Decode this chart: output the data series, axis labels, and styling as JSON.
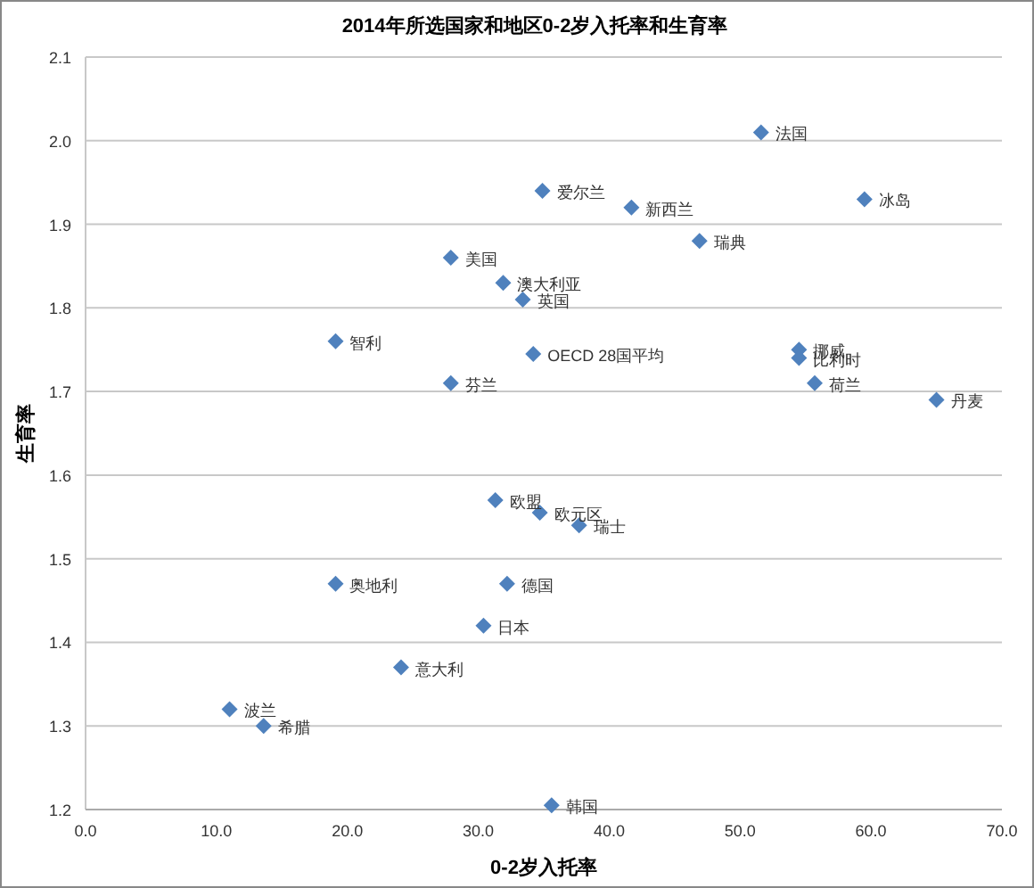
{
  "chart_data": {
    "type": "scatter",
    "title": "2014年所选国家和地区0-2岁入托率和生育率",
    "xlabel": "0-2岁入托率",
    "ylabel": "生育率",
    "series": [
      {
        "color": "#4f81bd",
        "x": [
          51.6,
          59.5,
          34.9,
          41.7,
          46.9,
          27.9,
          31.9,
          33.4,
          19.1,
          34.2,
          54.5,
          54.5,
          27.9,
          55.7,
          65.0,
          31.3,
          34.7,
          37.7,
          19.1,
          32.2,
          30.4,
          24.1,
          11.0,
          13.6,
          35.6
        ],
        "values": [
          2.01,
          1.93,
          1.94,
          1.92,
          1.88,
          1.86,
          1.83,
          1.81,
          1.76,
          1.745,
          1.75,
          1.74,
          1.71,
          1.71,
          1.69,
          1.57,
          1.555,
          1.54,
          1.47,
          1.47,
          1.42,
          1.37,
          1.32,
          1.3,
          1.205
        ]
      }
    ],
    "annotations": [
      {
        "text": "法国",
        "x": 51.6,
        "y": 2.01
      },
      {
        "text": "冰岛",
        "x": 59.5,
        "y": 1.93
      },
      {
        "text": "爱尔兰",
        "x": 34.9,
        "y": 1.94
      },
      {
        "text": "新西兰",
        "x": 41.7,
        "y": 1.92
      },
      {
        "text": "瑞典",
        "x": 46.9,
        "y": 1.88
      },
      {
        "text": "美国",
        "x": 27.9,
        "y": 1.86
      },
      {
        "text": "澳大利亚",
        "x": 31.9,
        "y": 1.83
      },
      {
        "text": "英国",
        "x": 33.4,
        "y": 1.81
      },
      {
        "text": "智利",
        "x": 19.1,
        "y": 1.76
      },
      {
        "text": "OECD 28国平均",
        "x": 34.2,
        "y": 1.745
      },
      {
        "text": "挪威",
        "x": 54.5,
        "y": 1.75
      },
      {
        "text": "比利时",
        "x": 54.5,
        "y": 1.74
      },
      {
        "text": "芬兰",
        "x": 27.9,
        "y": 1.71
      },
      {
        "text": "荷兰",
        "x": 55.7,
        "y": 1.71
      },
      {
        "text": "丹麦",
        "x": 65.0,
        "y": 1.69
      },
      {
        "text": "欧盟",
        "x": 31.3,
        "y": 1.57
      },
      {
        "text": "欧元区",
        "x": 34.7,
        "y": 1.555
      },
      {
        "text": "瑞士",
        "x": 37.7,
        "y": 1.54
      },
      {
        "text": "奥地利",
        "x": 19.1,
        "y": 1.47
      },
      {
        "text": "德国",
        "x": 32.2,
        "y": 1.47
      },
      {
        "text": "日本",
        "x": 30.4,
        "y": 1.42
      },
      {
        "text": "意大利",
        "x": 24.1,
        "y": 1.37
      },
      {
        "text": "波兰",
        "x": 11.0,
        "y": 1.32
      },
      {
        "text": "希腊",
        "x": 13.6,
        "y": 1.3
      },
      {
        "text": "韩国",
        "x": 35.6,
        "y": 1.205
      }
    ],
    "xlim": [
      0,
      70
    ],
    "xticks": [
      {
        "value": 0,
        "label": "0.0"
      },
      {
        "value": 10,
        "label": "10.0"
      },
      {
        "value": 20,
        "label": "20.0"
      },
      {
        "value": 30,
        "label": "30.0"
      },
      {
        "value": 40,
        "label": "40.0"
      },
      {
        "value": 50,
        "label": "50.0"
      },
      {
        "value": 60,
        "label": "60.0"
      },
      {
        "value": 70,
        "label": "70.0"
      }
    ],
    "ylim": [
      1.2,
      2.1
    ],
    "yticks": [
      1.2,
      1.3,
      1.4,
      1.5,
      1.6,
      1.7,
      1.8,
      1.9,
      {
        "value": 2.0,
        "label": "2.0"
      },
      2.1
    ],
    "grid": "y",
    "marker": "diamond"
  }
}
